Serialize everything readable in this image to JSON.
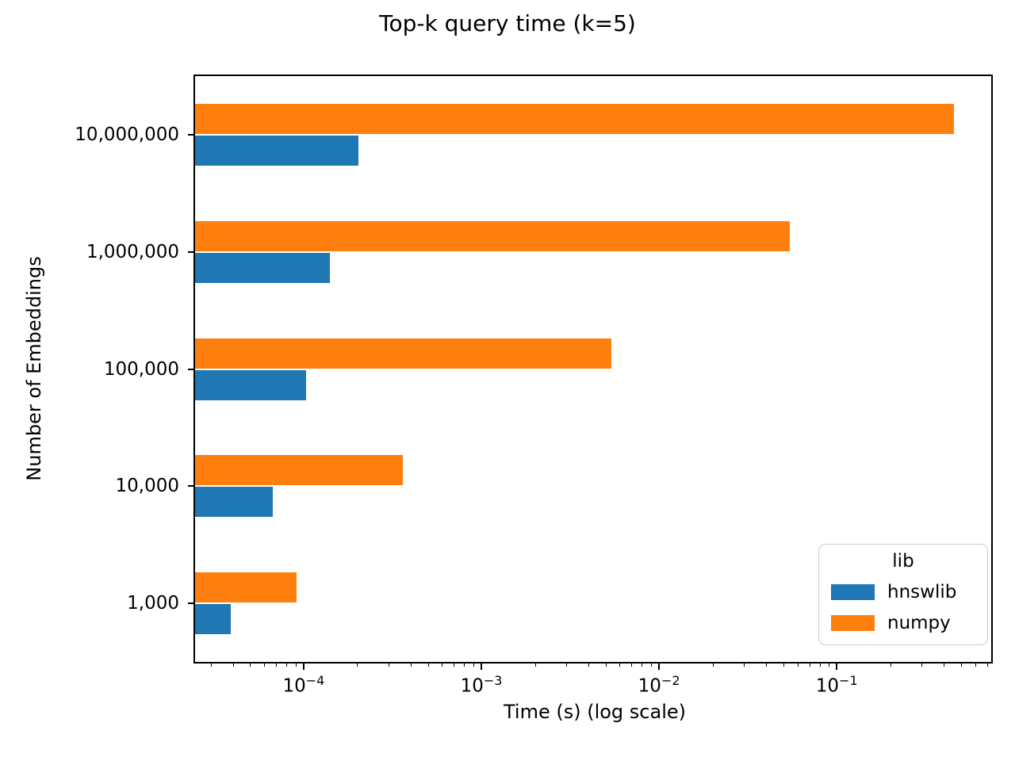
{
  "chart_data": {
    "type": "bar",
    "orientation": "horizontal",
    "title": "Top-k query time (k=5)",
    "xlabel": "Time (s) (log scale)",
    "ylabel": "Number of Embeddings",
    "x_scale": "log",
    "xlim": [
      2.45e-05,
      0.74
    ],
    "grid": false,
    "categories": [
      "10,000,000",
      "1,000,000",
      "100,000",
      "10,000",
      "1,000"
    ],
    "series": [
      {
        "name": "hnswlib",
        "color": "#1f77b4",
        "values": [
          0.000203,
          0.00014,
          0.000103,
          6.7e-05,
          3.9e-05
        ]
      },
      {
        "name": "numpy",
        "color": "#ff7f0e",
        "values": [
          0.457,
          0.0545,
          0.0054,
          0.00036,
          9.1e-05
        ]
      }
    ],
    "x_tick_exponents": [
      -4,
      -3,
      -2,
      -1
    ],
    "x_tick_base": "10",
    "legend": {
      "title": "lib",
      "position": "lower right"
    }
  }
}
